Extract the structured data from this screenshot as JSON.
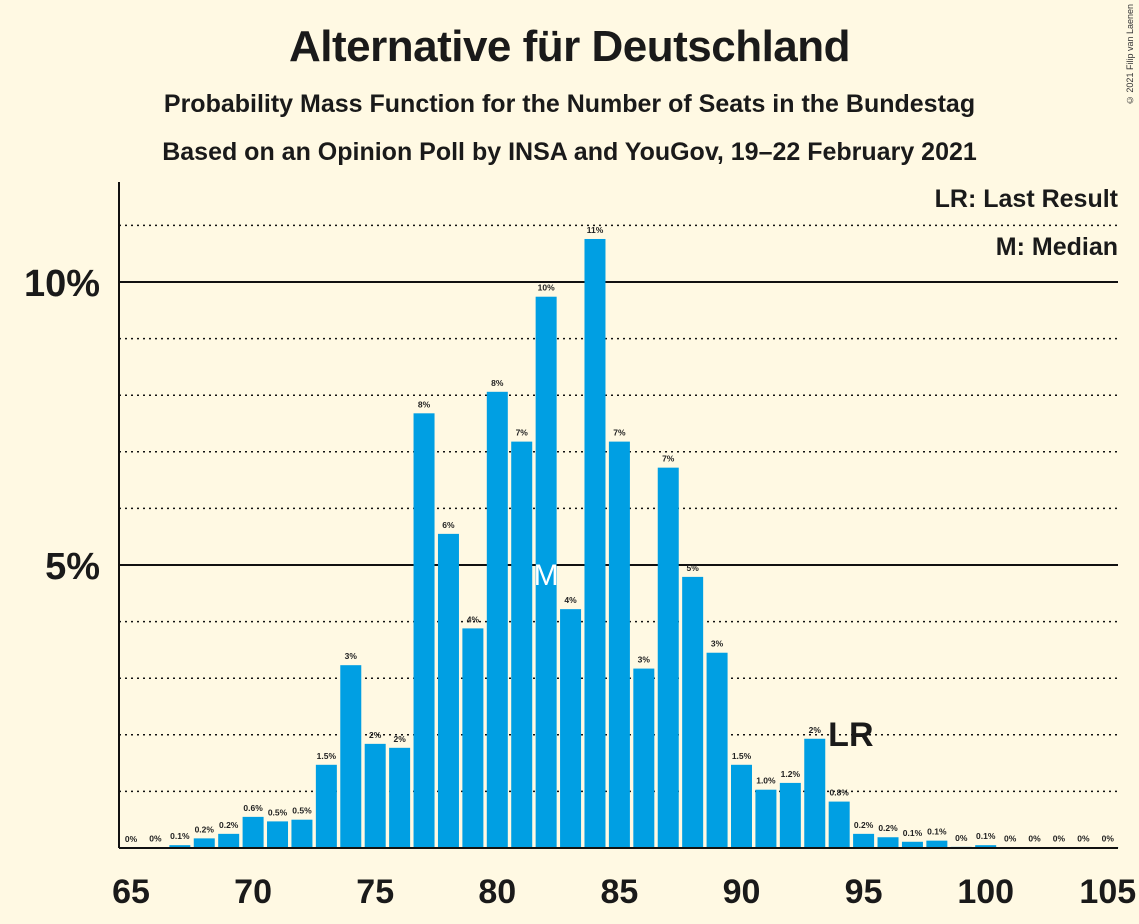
{
  "title": "Alternative für Deutschland",
  "subtitle": "Probability Mass Function for the Number of Seats in the Bundestag",
  "subtitle2": "Based on an Opinion Poll by INSA and YouGov, 19–22 February 2021",
  "copyright": "© 2021 Filip van Laenen",
  "legend": {
    "last_result": "LR: Last Result",
    "median": "M: Median"
  },
  "colors": {
    "bar": "#009FE3",
    "background": "#FFF9E3",
    "text": "#1a1a1a"
  },
  "chart_data": {
    "type": "bar",
    "title": "Alternative für Deutschland",
    "xlabel": "",
    "ylabel": "",
    "xlim": [
      65,
      105
    ],
    "ylim": [
      0,
      11.8
    ],
    "x_ticks": [
      65,
      70,
      75,
      80,
      85,
      90,
      95,
      100,
      105
    ],
    "y_ticks": [
      {
        "value": 5,
        "label": "5%"
      },
      {
        "value": 10,
        "label": "10%"
      }
    ],
    "grid": "dotted every 1%, solid at 5% and 10%",
    "median_seat": 82,
    "median_marker": "M",
    "last_result_seat": 94,
    "last_result_marker": "LR",
    "series": [
      {
        "x": [
          66,
          67,
          68,
          69,
          70,
          71,
          72,
          73,
          74,
          75,
          76,
          77,
          78,
          79,
          80,
          81,
          82,
          83,
          84,
          85,
          86,
          87,
          88,
          89,
          90,
          91,
          92,
          93,
          94,
          95,
          96,
          97,
          98,
          99,
          100,
          101,
          102,
          103,
          104,
          105
        ],
        "values": [
          0.01,
          0.05,
          0.17,
          0.25,
          0.55,
          0.47,
          0.5,
          1.47,
          3.23,
          1.84,
          1.77,
          7.68,
          5.55,
          3.88,
          8.06,
          7.18,
          9.74,
          4.22,
          10.76,
          7.18,
          3.17,
          6.72,
          4.79,
          3.45,
          1.47,
          1.03,
          1.15,
          1.93,
          0.82,
          0.25,
          0.19,
          0.11,
          0.13,
          0.02,
          0.05,
          0.01,
          0.01,
          0.01,
          0.01,
          0.01
        ],
        "labels": [
          "0%",
          "0.1%",
          "0.2%",
          "0.2%",
          "0.6%",
          "0.5%",
          "0.5%",
          "1.5%",
          "3%",
          "2%",
          "2%",
          "8%",
          "6%",
          "4%",
          "8%",
          "7%",
          "10%",
          "4%",
          "11%",
          "7%",
          "3%",
          "7%",
          "5%",
          "3%",
          "1.5%",
          "1.0%",
          "1.2%",
          "2%",
          "0.8%",
          "0.2%",
          "0.2%",
          "0.1%",
          "0.1%",
          "0%",
          "0.1%",
          "0%",
          "0%",
          "0%",
          "0%",
          "0%"
        ]
      }
    ],
    "zero_labels_at": [
      {
        "x": 65,
        "label": "0%"
      }
    ]
  }
}
